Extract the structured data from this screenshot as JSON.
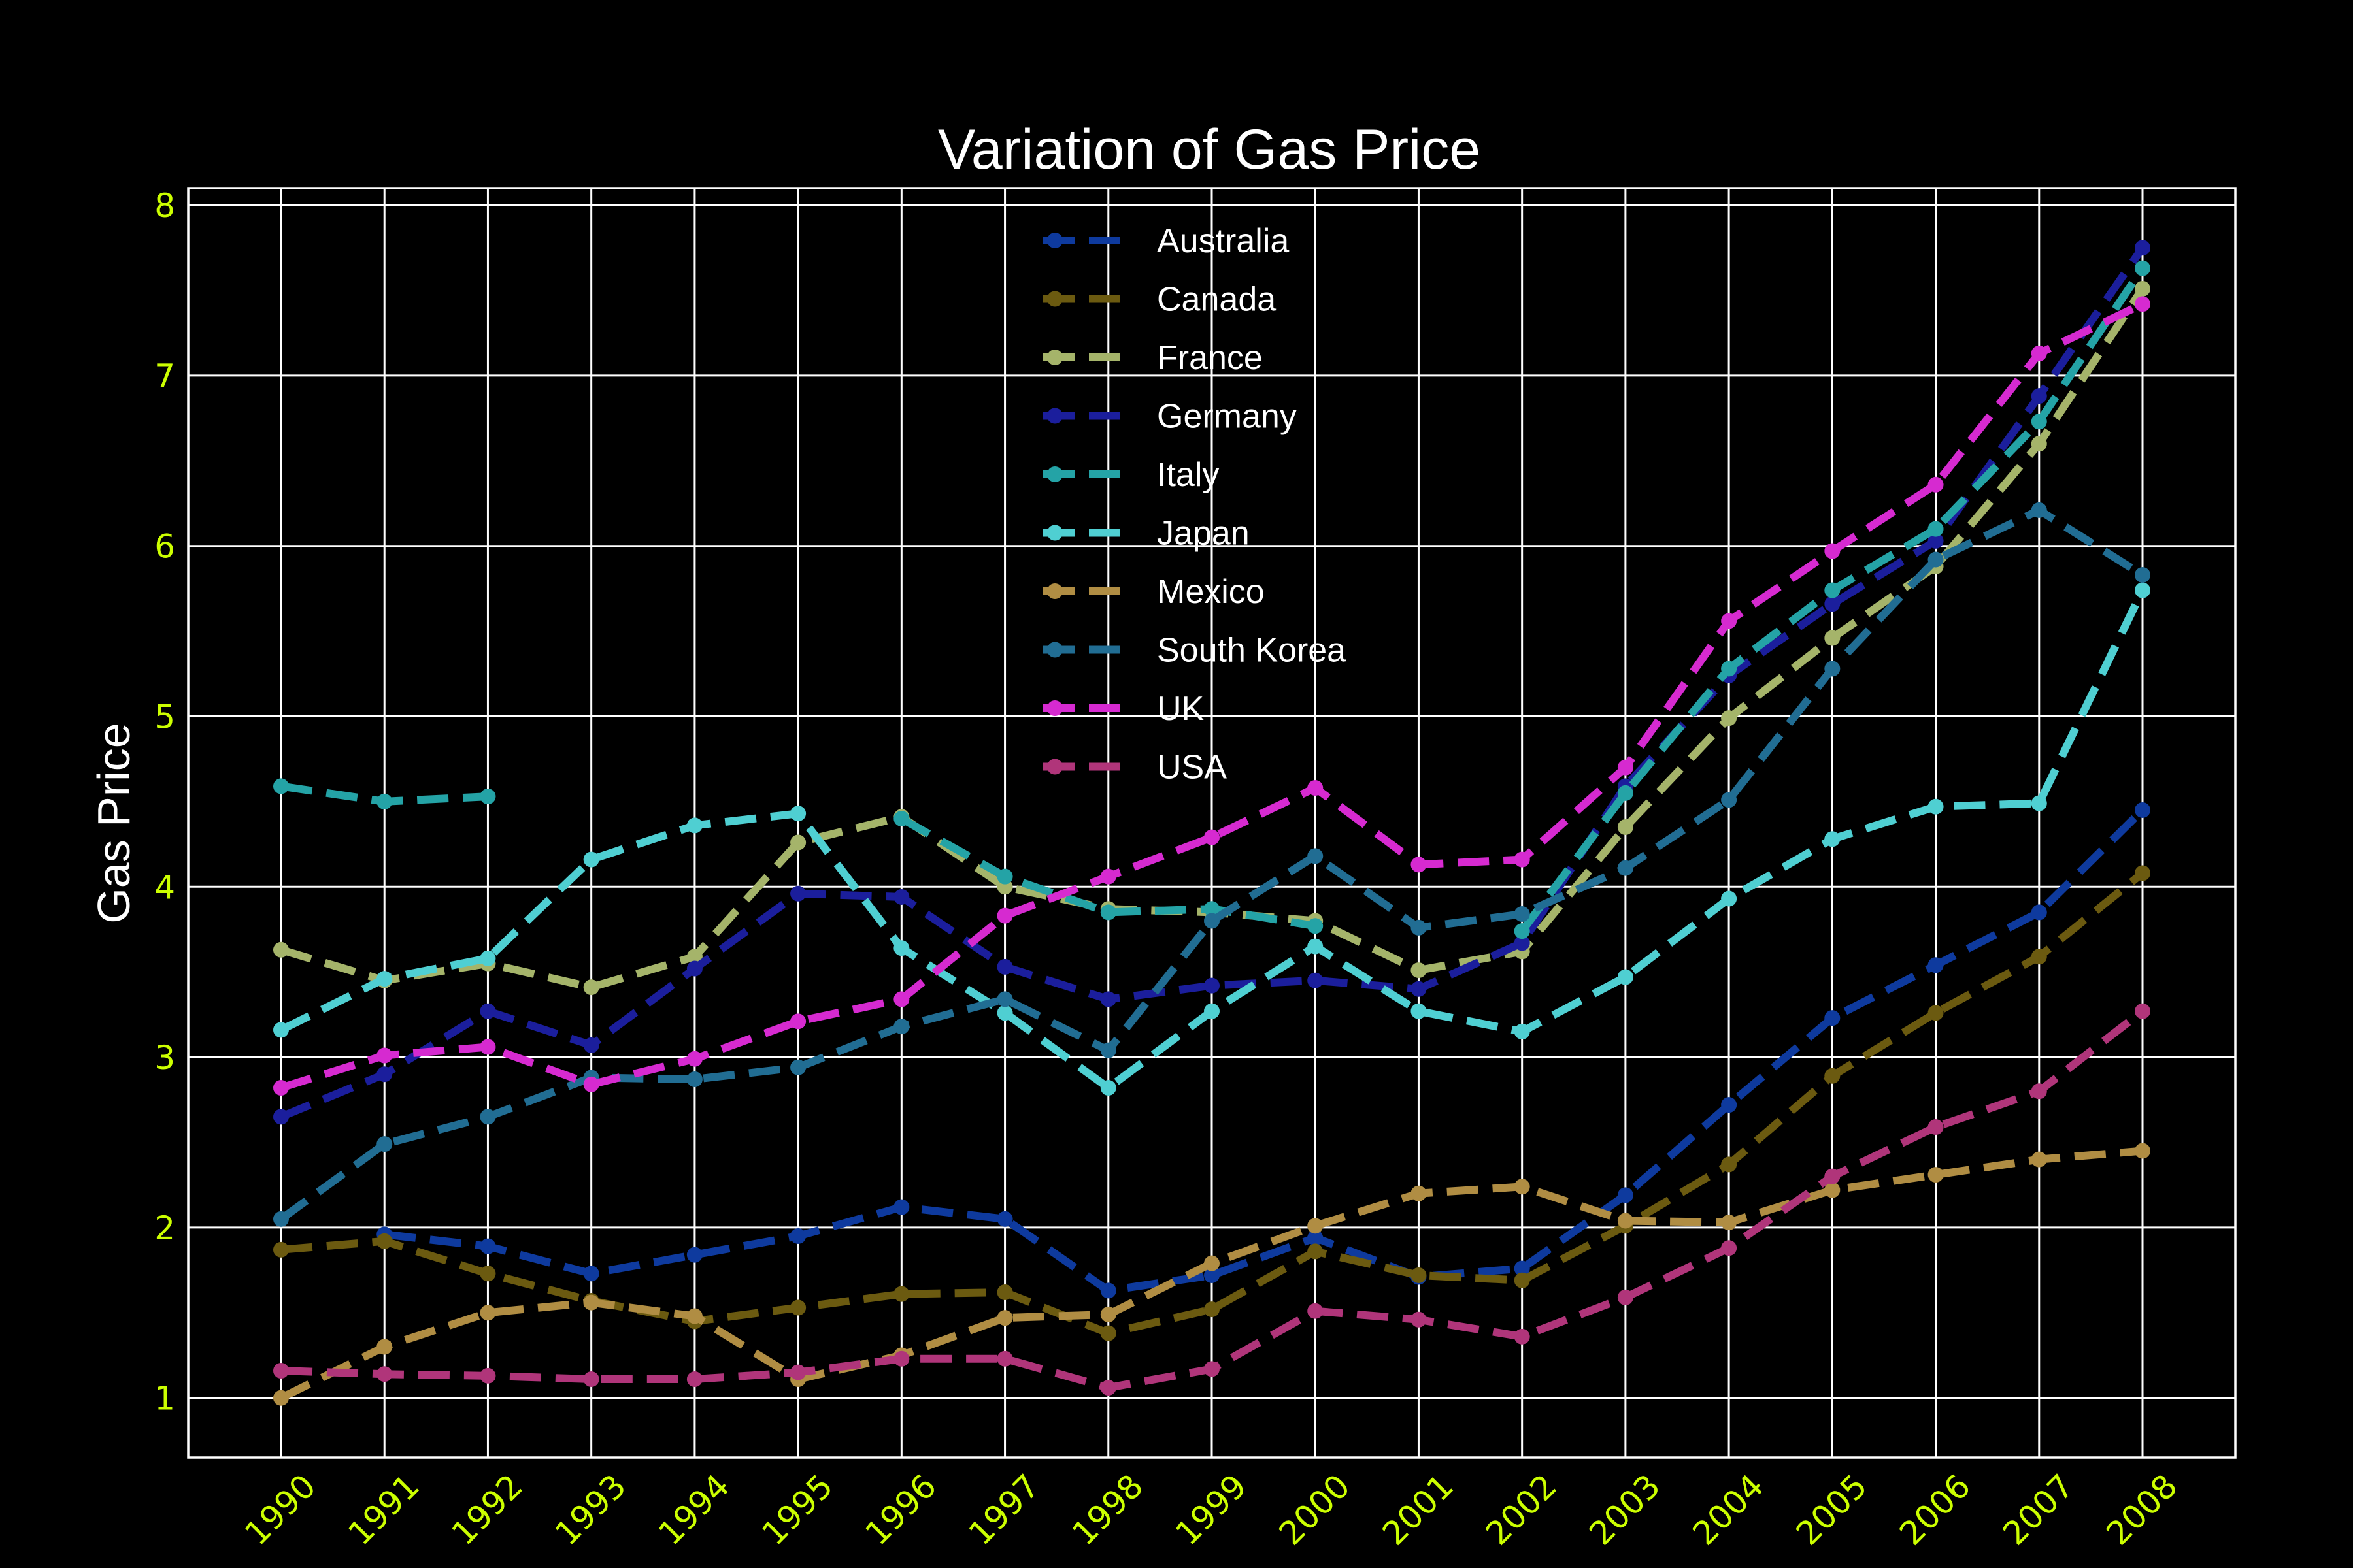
{
  "chart_data": {
    "type": "line",
    "title": "Variation of Gas Price",
    "xlabel": "",
    "ylabel": "Gas Price",
    "ylim": [
      0.65,
      8.1
    ],
    "yticks": [
      1,
      2,
      3,
      4,
      5,
      6,
      7,
      8
    ],
    "grid": true,
    "legend_position": "top-center",
    "line_style": "dashed",
    "marker": "circle",
    "x": [
      "1990",
      "1991",
      "1992",
      "1993",
      "1994",
      "1995",
      "1996",
      "1997",
      "1998",
      "1999",
      "2000",
      "2001",
      "2002",
      "2003",
      "2004",
      "2005",
      "2006",
      "2007",
      "2008"
    ],
    "series": [
      {
        "name": "Australia",
        "color": "#0e3a9e",
        "values": [
          null,
          1.96,
          1.89,
          1.73,
          1.84,
          1.95,
          2.12,
          2.05,
          1.63,
          1.72,
          1.94,
          1.71,
          1.76,
          2.19,
          2.72,
          3.23,
          3.54,
          3.85,
          4.45
        ]
      },
      {
        "name": "Canada",
        "color": "#6b5a10",
        "values": [
          1.87,
          1.92,
          1.73,
          1.57,
          1.45,
          1.53,
          1.61,
          1.62,
          1.38,
          1.52,
          1.86,
          1.72,
          1.69,
          2.01,
          2.37,
          2.89,
          3.26,
          3.59,
          4.08
        ]
      },
      {
        "name": "France",
        "color": "#a5b46a",
        "values": [
          3.63,
          3.45,
          3.55,
          3.41,
          3.59,
          4.26,
          4.41,
          4.0,
          3.87,
          3.85,
          3.8,
          3.51,
          3.62,
          4.35,
          4.99,
          5.46,
          5.88,
          6.6,
          7.51
        ]
      },
      {
        "name": "Germany",
        "color": "#1b1e9c",
        "values": [
          2.65,
          2.9,
          3.27,
          3.07,
          3.52,
          3.96,
          3.94,
          3.53,
          3.34,
          3.42,
          3.45,
          3.4,
          3.67,
          4.59,
          5.24,
          5.66,
          6.03,
          6.88,
          7.75
        ]
      },
      {
        "name": "Italy",
        "color": "#24a3a6",
        "values": [
          4.59,
          4.5,
          4.53,
          null,
          null,
          null,
          4.4,
          4.06,
          3.85,
          3.87,
          3.77,
          null,
          3.74,
          4.55,
          5.28,
          5.74,
          6.1,
          6.73,
          7.63
        ]
      },
      {
        "name": "Japan",
        "color": "#4fcfd2",
        "values": [
          3.16,
          3.46,
          3.58,
          4.16,
          4.36,
          4.43,
          3.64,
          3.26,
          2.82,
          3.27,
          3.65,
          3.27,
          3.15,
          3.47,
          3.93,
          4.28,
          4.47,
          4.49,
          5.74
        ]
      },
      {
        "name": "Mexico",
        "color": "#b08d43",
        "values": [
          1.0,
          1.3,
          1.5,
          1.56,
          1.48,
          1.11,
          1.25,
          1.47,
          1.49,
          1.79,
          2.01,
          2.2,
          2.24,
          2.04,
          2.03,
          2.22,
          2.31,
          2.4,
          2.45
        ]
      },
      {
        "name": "South Korea",
        "color": "#216d93",
        "values": [
          2.05,
          2.49,
          2.65,
          2.88,
          2.87,
          2.94,
          3.18,
          3.34,
          3.04,
          3.8,
          4.18,
          3.76,
          3.84,
          4.11,
          4.51,
          5.28,
          5.92,
          6.21,
          5.83
        ]
      },
      {
        "name": "UK",
        "color": "#d62ad0",
        "values": [
          2.82,
          3.01,
          3.06,
          2.84,
          2.99,
          3.21,
          3.34,
          3.83,
          4.06,
          4.29,
          4.58,
          4.13,
          4.16,
          4.7,
          5.56,
          5.97,
          6.36,
          7.13,
          7.42
        ]
      },
      {
        "name": "USA",
        "color": "#b0357a",
        "values": [
          1.16,
          1.14,
          1.13,
          1.11,
          1.11,
          1.15,
          1.23,
          1.23,
          1.06,
          1.17,
          1.51,
          1.46,
          1.36,
          1.59,
          1.88,
          2.3,
          2.59,
          2.8,
          3.27
        ]
      }
    ]
  }
}
